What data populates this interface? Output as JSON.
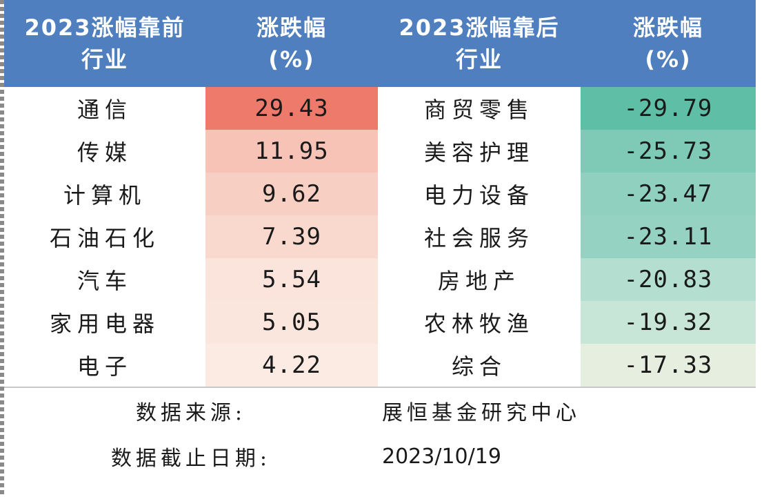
{
  "header": {
    "col1_line1": "2023涨幅靠前",
    "col1_line2": "行业",
    "col2_line1": "涨跌幅",
    "col2_line2": "(%)",
    "col3_line1": "2023涨幅靠后",
    "col3_line2": "行业",
    "col4_line1": "涨跌幅",
    "col4_line2": "(%)"
  },
  "colors": {
    "header_bg": "#4f7fbe",
    "gain_scale": [
      "#ee7a6c",
      "#f6c3b6",
      "#f8cfc3",
      "#f9d9ce",
      "#fbe4db",
      "#fbe6dd",
      "#fcebe3"
    ],
    "loss_scale": [
      "#5fbfa6",
      "#7fcab6",
      "#90d0bf",
      "#95d2c2",
      "#b4dfd0",
      "#c8e6d7",
      "#e6efdf"
    ]
  },
  "rows": [
    {
      "top_name": "通信",
      "top_value": "29.43",
      "bottom_name": "商贸零售",
      "bottom_value": "-29.79"
    },
    {
      "top_name": "传媒",
      "top_value": "11.95",
      "bottom_name": "美容护理",
      "bottom_value": "-25.73"
    },
    {
      "top_name": "计算机",
      "top_value": "9.62",
      "bottom_name": "电力设备",
      "bottom_value": "-23.47"
    },
    {
      "top_name": "石油石化",
      "top_value": "7.39",
      "bottom_name": "社会服务",
      "bottom_value": "-23.11"
    },
    {
      "top_name": "汽车",
      "top_value": "5.54",
      "bottom_name": "房地产",
      "bottom_value": "-20.83"
    },
    {
      "top_name": "家用电器",
      "top_value": "5.05",
      "bottom_name": "农林牧渔",
      "bottom_value": "-19.32"
    },
    {
      "top_name": "电子",
      "top_value": "4.22",
      "bottom_name": "综合",
      "bottom_value": "-17.33"
    }
  ],
  "footer": {
    "source_label": "数据来源:",
    "source_value": "展恒基金研究中心",
    "date_label": "数据截止日期:",
    "date_value": "2023/10/19"
  }
}
